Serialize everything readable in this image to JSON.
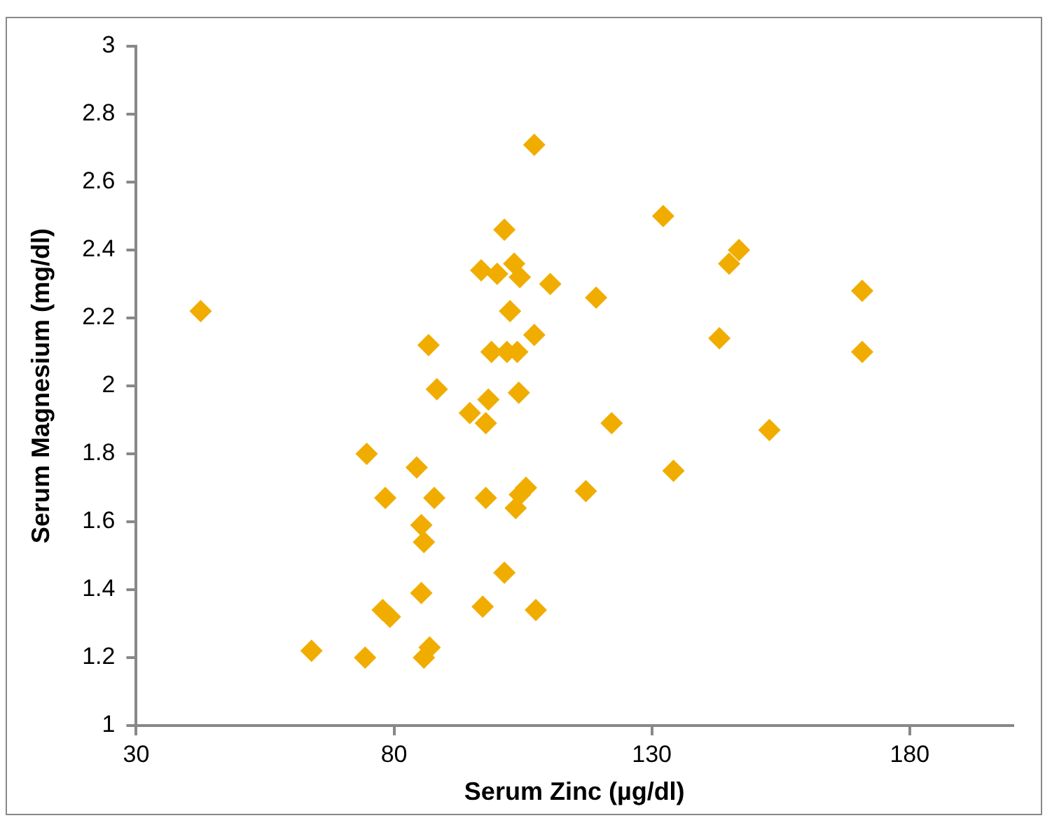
{
  "chart_data": {
    "type": "scatter",
    "xlabel": "Serum Zinc (µg/dl)",
    "ylabel": "Serum Magnesium (mg/dl)",
    "xlim": [
      30,
      200
    ],
    "xticks": [
      30,
      80,
      130,
      180
    ],
    "ylim": [
      1,
      3
    ],
    "yticks": [
      1,
      1.2,
      1.4,
      1.6,
      1.8,
      2,
      2.2,
      2.4,
      2.6,
      2.8,
      3
    ],
    "grid": false,
    "legend": false,
    "marker": "diamond",
    "series": [
      {
        "color": "#f0ad00",
        "x": [
          42.5,
          64,
          74.4,
          74.7,
          77.8,
          78.3,
          79.2,
          84.4,
          85.3,
          85.3,
          85.8,
          86.7,
          85.8,
          86.9,
          87.8,
          88.3,
          94.7,
          96.9,
          97.2,
          97.8,
          97.8,
          98.3,
          98.9,
          100,
          101.4,
          101.4,
          101.9,
          102.5,
          103.3,
          103.9,
          103.6,
          104.2,
          104.4,
          104.4,
          105.6,
          107.2,
          107.2,
          107.5,
          110.3,
          117.2,
          119.2,
          122.2,
          132.2,
          134.2,
          145,
          146.9,
          143.1,
          170.8,
          170.8,
          152.8
        ],
        "values": [
          2.22,
          1.22,
          1.2,
          1.8,
          1.34,
          1.67,
          1.32,
          1.76,
          1.59,
          1.39,
          1.54,
          2.12,
          1.2,
          1.23,
          1.67,
          1.99,
          1.92,
          2.34,
          1.35,
          1.89,
          1.67,
          1.96,
          2.1,
          2.33,
          2.46,
          1.45,
          2.1,
          2.22,
          2.36,
          2.1,
          1.64,
          1.98,
          2.32,
          1.68,
          1.7,
          2.71,
          2.15,
          1.34,
          2.3,
          1.69,
          2.26,
          1.89,
          2.5,
          1.75,
          2.36,
          2.4,
          2.14,
          2.28,
          2.1,
          1.87
        ]
      }
    ]
  }
}
